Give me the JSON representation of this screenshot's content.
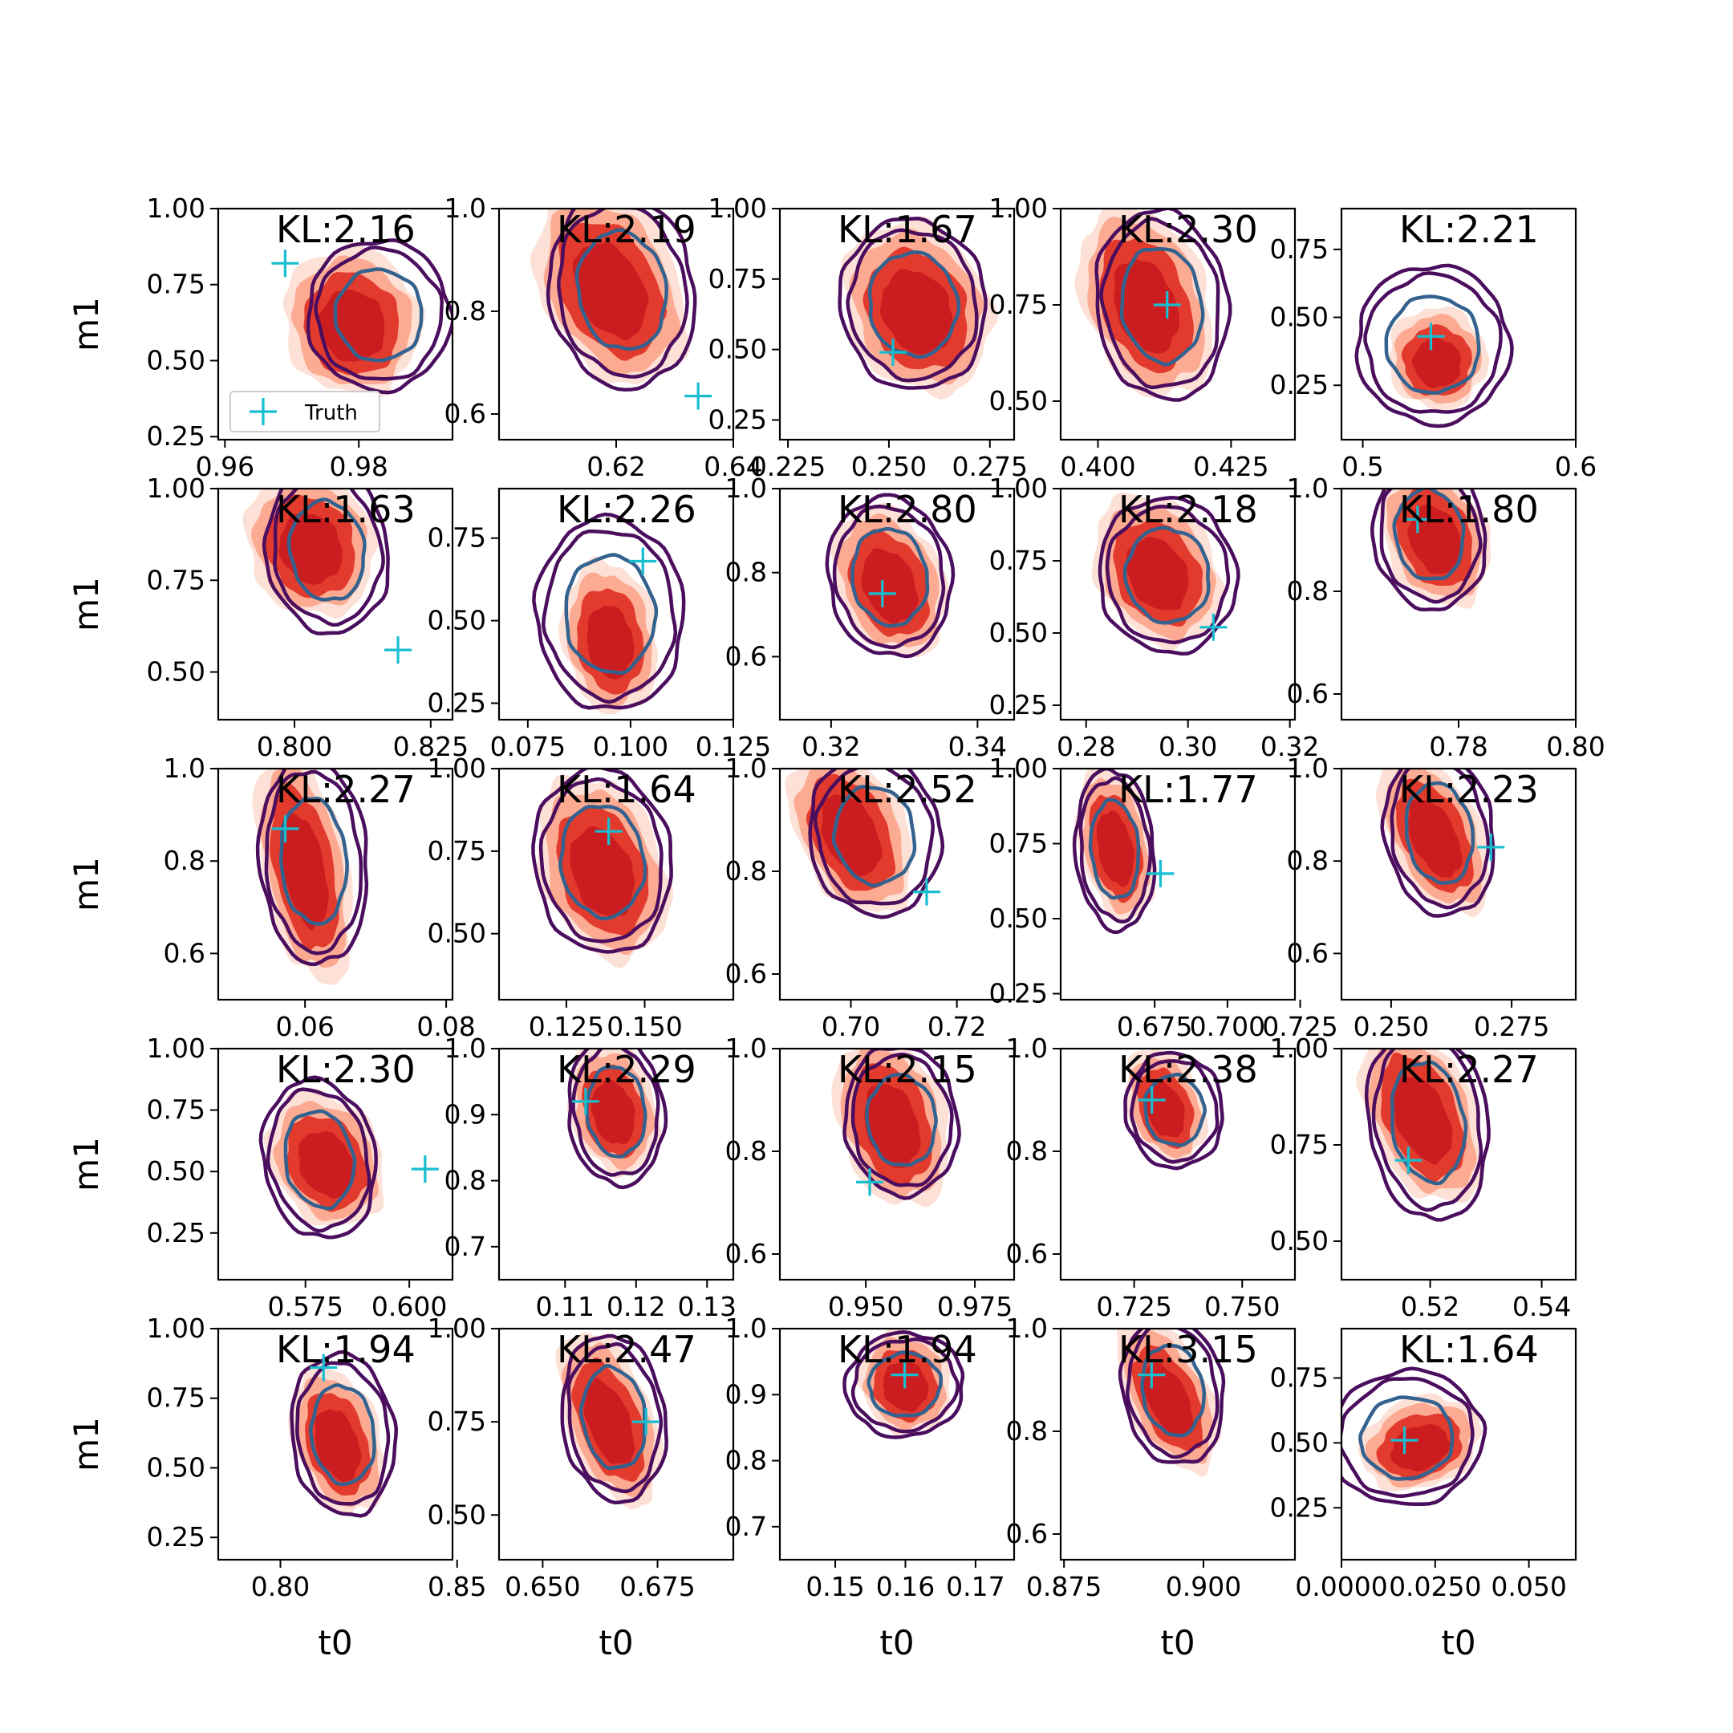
{
  "chart_data": {
    "type": "contour",
    "grid": false,
    "legend": {
      "entries": [
        "Truth"
      ],
      "placement": "bottom-left of top-left panel"
    },
    "xlabel": "t0",
    "ylabel": "m1",
    "colors": {
      "filled_light": "#fde0d6",
      "filled_mid": "#fcab92",
      "filled_dark": "#e23b2e",
      "filled_core": "#cb1d1f",
      "contour_outer": "#4b0d5e",
      "contour_inner": "#34628f",
      "truth_marker": "#17becf"
    },
    "panels": [
      {
        "kl": "KL:2.16",
        "xticks": [
          "0.96",
          "0.98"
        ],
        "yticks": [
          "0.25",
          "0.50",
          "0.75",
          "1.00"
        ],
        "xlim": [
          0.959,
          0.994
        ],
        "ylim": [
          0.24,
          1.0
        ],
        "truth": [
          0.969,
          0.82
        ],
        "post_center": [
          0.979,
          0.63
        ],
        "post_rx": 0.007,
        "post_ry": 0.17,
        "post_tilt": -0.35,
        "ref_center": [
          0.983,
          0.65
        ],
        "ref_rx": 0.0095,
        "ref_ry": 0.22
      },
      {
        "kl": "KL:2.19",
        "xticks": [
          "0.62",
          "0.64"
        ],
        "yticks": [
          "0.6",
          "0.8",
          "1.0"
        ],
        "xlim": [
          0.6,
          0.64
        ],
        "ylim": [
          0.55,
          1.0
        ],
        "truth": [
          0.634,
          0.635
        ],
        "post_center": [
          0.619,
          0.85
        ],
        "post_rx": 0.008,
        "post_ry": 0.14,
        "post_tilt": -0.45,
        "ref_center": [
          0.621,
          0.84
        ],
        "ref_rx": 0.011,
        "ref_ry": 0.17
      },
      {
        "kl": "KL:1.67",
        "xticks": [
          "0.225",
          "0.250",
          "0.275"
        ],
        "yticks": [
          "0.25",
          "0.50",
          "0.75",
          "1.00"
        ],
        "xlim": [
          0.223,
          0.281
        ],
        "ylim": [
          0.18,
          1.0
        ],
        "truth": [
          0.251,
          0.49
        ],
        "post_center": [
          0.257,
          0.65
        ],
        "post_rx": 0.012,
        "post_ry": 0.22,
        "post_tilt": -0.45,
        "ref_center": [
          0.256,
          0.66
        ],
        "ref_rx": 0.016,
        "ref_ry": 0.27
      },
      {
        "kl": "KL:2.30",
        "xticks": [
          "0.400",
          "0.425"
        ],
        "yticks": [
          "0.50",
          "0.75",
          "1.00"
        ],
        "xlim": [
          0.393,
          0.437
        ],
        "ylim": [
          0.4,
          1.0
        ],
        "truth": [
          0.413,
          0.75
        ],
        "post_center": [
          0.409,
          0.76
        ],
        "post_rx": 0.008,
        "post_ry": 0.18,
        "post_tilt": -0.35,
        "ref_center": [
          0.412,
          0.75
        ],
        "ref_rx": 0.011,
        "ref_ry": 0.22
      },
      {
        "kl": "KL:2.21",
        "xticks": [
          "0.5",
          "0.6"
        ],
        "yticks": [
          "0.25",
          "0.50",
          "0.75"
        ],
        "xlim": [
          0.49,
          0.6
        ],
        "ylim": [
          0.05,
          0.9
        ],
        "truth": [
          0.532,
          0.43
        ],
        "post_center": [
          0.535,
          0.35
        ],
        "post_rx": 0.016,
        "post_ry": 0.13,
        "post_tilt": -0.4,
        "ref_center": [
          0.533,
          0.4
        ],
        "ref_rx": 0.032,
        "ref_ry": 0.26
      }
    ],
    "panels_row2": [
      {
        "kl": "KL:1.63",
        "xticks": [
          "0.800",
          "0.825"
        ],
        "yticks": [
          "0.50",
          "0.75",
          "1.00"
        ],
        "xlim": [
          0.786,
          0.829
        ],
        "ylim": [
          0.37,
          1.0
        ],
        "truth": [
          0.819,
          0.56
        ],
        "post_center": [
          0.803,
          0.85
        ],
        "post_rx": 0.008,
        "post_ry": 0.14,
        "post_tilt": -0.4,
        "ref_center": [
          0.806,
          0.83
        ],
        "ref_rx": 0.01,
        "ref_ry": 0.2
      },
      {
        "kl": "KL:2.26",
        "xticks": [
          "0.075",
          "0.100",
          "0.125"
        ],
        "yticks": [
          "0.25",
          "0.50",
          "0.75"
        ],
        "xlim": [
          0.068,
          0.125
        ],
        "ylim": [
          0.2,
          0.9
        ],
        "truth": [
          0.103,
          0.68
        ],
        "post_center": [
          0.095,
          0.45
        ],
        "post_rx": 0.008,
        "post_ry": 0.16,
        "post_tilt": -0.15,
        "ref_center": [
          0.095,
          0.52
        ],
        "ref_rx": 0.016,
        "ref_ry": 0.26
      },
      {
        "kl": "KL:2.80",
        "xticks": [
          "0.32",
          "0.34"
        ],
        "yticks": [
          "0.6",
          "0.8",
          "1.0"
        ],
        "xlim": [
          0.313,
          0.345
        ],
        "ylim": [
          0.45,
          1.0
        ],
        "truth": [
          0.327,
          0.75
        ],
        "post_center": [
          0.328,
          0.78
        ],
        "post_rx": 0.005,
        "post_ry": 0.13,
        "post_tilt": -0.4,
        "ref_center": [
          0.328,
          0.79
        ],
        "ref_rx": 0.0075,
        "ref_ry": 0.17
      },
      {
        "kl": "KL:2.18",
        "xticks": [
          "0.28",
          "0.30",
          "0.32"
        ],
        "yticks": [
          "0.25",
          "0.50",
          "0.75",
          "1.00"
        ],
        "xlim": [
          0.275,
          0.321
        ],
        "ylim": [
          0.2,
          1.0
        ],
        "truth": [
          0.305,
          0.52
        ],
        "post_center": [
          0.294,
          0.72
        ],
        "post_rx": 0.008,
        "post_ry": 0.19,
        "post_tilt": -0.5,
        "ref_center": [
          0.296,
          0.7
        ],
        "ref_rx": 0.012,
        "ref_ry": 0.24
      },
      {
        "kl": "KL:1.80",
        "xticks": [
          "0.78",
          "0.80"
        ],
        "yticks": [
          "0.6",
          "0.8",
          "1.0"
        ],
        "xlim": [
          0.76,
          0.8
        ],
        "ylim": [
          0.55,
          1.0
        ],
        "truth": [
          0.773,
          0.94
        ],
        "post_center": [
          0.776,
          0.91
        ],
        "post_rx": 0.006,
        "post_ry": 0.1,
        "post_tilt": -0.4,
        "ref_center": [
          0.775,
          0.91
        ],
        "ref_rx": 0.0085,
        "ref_ry": 0.13
      }
    ],
    "panels_row3": [
      {
        "kl": "KL:2.27",
        "xticks": [
          "0.06",
          "0.08"
        ],
        "yticks": [
          "0.6",
          "0.8",
          "1.0"
        ],
        "xlim": [
          0.0477,
          0.0809
        ],
        "ylim": [
          0.5,
          1.0
        ],
        "truth": [
          0.0572,
          0.87
        ],
        "post_center": [
          0.0599,
          0.79
        ],
        "post_rx": 0.0042,
        "post_ry": 0.18,
        "post_tilt": -0.2,
        "ref_center": [
          0.0612,
          0.8
        ],
        "ref_rx": 0.0068,
        "ref_ry": 0.2
      },
      {
        "kl": "KL:1.64",
        "xticks": [
          "0.125",
          "0.150"
        ],
        "yticks": [
          "0.50",
          "0.75",
          "1.00"
        ],
        "xlim": [
          0.1035,
          0.1783
        ],
        "ylim": [
          0.3,
          1.0
        ],
        "truth": [
          0.1385,
          0.81
        ],
        "post_center": [
          0.1365,
          0.7
        ],
        "post_rx": 0.0135,
        "post_ry": 0.2,
        "post_tilt": -0.35,
        "ref_center": [
          0.1365,
          0.72
        ],
        "ref_rx": 0.0195,
        "ref_ry": 0.25
      },
      {
        "kl": "KL:2.52",
        "xticks": [
          "0.70",
          "0.72"
        ],
        "yticks": [
          "0.6",
          "0.8",
          "1.0"
        ],
        "xlim": [
          0.6866,
          0.7308
        ],
        "ylim": [
          0.55,
          1.0
        ],
        "truth": [
          0.7143,
          0.76
        ],
        "post_center": [
          0.7,
          0.88
        ],
        "post_rx": 0.007,
        "post_ry": 0.12,
        "post_tilt": -0.45,
        "ref_center": [
          0.7045,
          0.87
        ],
        "ref_rx": 0.011,
        "ref_ry": 0.14
      },
      {
        "kl": "KL:1.77",
        "xticks": [
          "0.675",
          "0.700",
          "0.725"
        ],
        "yticks": [
          "0.25",
          "0.50",
          "0.75",
          "1.00"
        ],
        "xlim": [
          0.6427,
          0.7232
        ],
        "ylim": [
          0.23,
          1.0
        ],
        "truth": [
          0.677,
          0.65
        ],
        "post_center": [
          0.6615,
          0.75
        ],
        "post_rx": 0.0085,
        "post_ry": 0.18,
        "post_tilt": -0.2,
        "ref_center": [
          0.6613,
          0.73
        ],
        "ref_rx": 0.012,
        "ref_ry": 0.24
      },
      {
        "kl": "KL:2.23",
        "xticks": [
          "0.250",
          "0.275"
        ],
        "yticks": [
          "0.6",
          "0.8",
          "1.0"
        ],
        "xlim": [
          0.2397,
          0.2883
        ],
        "ylim": [
          0.5,
          1.0
        ],
        "truth": [
          0.2707,
          0.83
        ],
        "post_center": [
          0.259,
          0.86
        ],
        "post_rx": 0.0065,
        "post_ry": 0.13,
        "post_tilt": -0.45,
        "ref_center": [
          0.26,
          0.86
        ],
        "ref_rx": 0.01,
        "ref_ry": 0.16
      }
    ],
    "panels_row4": [
      {
        "kl": "KL:2.30",
        "xticks": [
          "0.575",
          "0.600"
        ],
        "yticks": [
          "0.25",
          "0.50",
          "0.75",
          "1.00"
        ],
        "xlim": [
          0.554,
          0.6104
        ],
        "ylim": [
          0.06,
          1.0
        ],
        "truth": [
          0.6038,
          0.51
        ],
        "post_center": [
          0.58,
          0.55
        ],
        "post_rx": 0.009,
        "post_ry": 0.2,
        "post_tilt": -0.5,
        "ref_center": [
          0.5783,
          0.55
        ],
        "ref_rx": 0.012,
        "ref_ry": 0.29
      },
      {
        "kl": "KL:2.29",
        "xticks": [
          "0.11",
          "0.12",
          "0.13"
        ],
        "yticks": [
          "0.7",
          "0.8",
          "0.9",
          "1.0"
        ],
        "xlim": [
          0.1007,
          0.1337
        ],
        "ylim": [
          0.65,
          1.0
        ],
        "truth": [
          0.1129,
          0.92
        ],
        "post_center": [
          0.1168,
          0.91
        ],
        "post_rx": 0.0042,
        "post_ry": 0.07,
        "post_tilt": -0.25,
        "ref_center": [
          0.1172,
          0.905
        ],
        "ref_rx": 0.006,
        "ref_ry": 0.1
      },
      {
        "kl": "KL:2.15",
        "xticks": [
          "0.950",
          "0.975"
        ],
        "yticks": [
          "0.6",
          "0.8",
          "1.0"
        ],
        "xlim": [
          0.9303,
          0.984
        ],
        "ylim": [
          0.55,
          1.0
        ],
        "truth": [
          0.9509,
          0.74
        ],
        "post_center": [
          0.956,
          0.86
        ],
        "post_rx": 0.0085,
        "post_ry": 0.12,
        "post_tilt": -0.3,
        "ref_center": [
          0.9582,
          0.86
        ],
        "ref_rx": 0.0115,
        "ref_ry": 0.13
      },
      {
        "kl": "KL:2.38",
        "xticks": [
          "0.725",
          "0.750"
        ],
        "yticks": [
          "0.6",
          "0.8",
          "1.0"
        ],
        "xlim": [
          0.708,
          0.7622
        ],
        "ylim": [
          0.55,
          1.0
        ],
        "truth": [
          0.7291,
          0.9
        ],
        "post_center": [
          0.7322,
          0.89
        ],
        "post_rx": 0.006,
        "post_ry": 0.08,
        "post_tilt": -0.35,
        "ref_center": [
          0.7343,
          0.88
        ],
        "ref_rx": 0.01,
        "ref_ry": 0.1
      },
      {
        "kl": "KL:2.27",
        "xticks": [
          "0.52",
          "0.54"
        ],
        "yticks": [
          "0.50",
          "0.75",
          "1.00"
        ],
        "xlim": [
          0.5041,
          0.5461
        ],
        "ylim": [
          0.4,
          1.0
        ],
        "truth": [
          0.5161,
          0.71
        ],
        "post_center": [
          0.5186,
          0.83
        ],
        "post_rx": 0.0065,
        "post_ry": 0.17,
        "post_tilt": -0.4,
        "ref_center": [
          0.5196,
          0.81
        ],
        "ref_rx": 0.0095,
        "ref_ry": 0.23
      }
    ],
    "panels_row5": [
      {
        "kl": "KL:1.94",
        "xticks": [
          "0.80",
          "0.85"
        ],
        "yticks": [
          "0.25",
          "0.50",
          "0.75",
          "1.00"
        ],
        "xlim": [
          0.7824,
          0.8487
        ],
        "ylim": [
          0.17,
          1.0
        ],
        "truth": [
          0.8122,
          0.86
        ],
        "post_center": [
          0.8161,
          0.6
        ],
        "post_rx": 0.0085,
        "post_ry": 0.19,
        "post_tilt": -0.3,
        "ref_center": [
          0.8177,
          0.62
        ],
        "ref_rx": 0.013,
        "ref_ry": 0.26
      },
      {
        "kl": "KL:2.47",
        "xticks": [
          "0.650",
          "0.675"
        ],
        "yticks": [
          "0.50",
          "0.75",
          "1.00"
        ],
        "xlim": [
          0.6405,
          0.6915
        ],
        "ylim": [
          0.38,
          1.0
        ],
        "truth": [
          0.6725,
          0.75
        ],
        "post_center": [
          0.6645,
          0.76
        ],
        "post_rx": 0.0065,
        "post_ry": 0.17,
        "post_tilt": -0.35,
        "ref_center": [
          0.6655,
          0.76
        ],
        "ref_rx": 0.01,
        "ref_ry": 0.2
      },
      {
        "kl": "KL:1.94",
        "xticks": [
          "0.15",
          "0.16",
          "0.17"
        ],
        "yticks": [
          "0.7",
          "0.8",
          "0.9",
          "1.0"
        ],
        "xlim": [
          0.1421,
          0.1755
        ],
        "ylim": [
          0.65,
          1.0
        ],
        "truth": [
          0.1599,
          0.93
        ],
        "post_center": [
          0.16,
          0.92
        ],
        "post_rx": 0.0045,
        "post_ry": 0.055,
        "post_tilt": -0.35,
        "ref_center": [
          0.1599,
          0.915
        ],
        "ref_rx": 0.0075,
        "ref_ry": 0.07
      },
      {
        "kl": "KL:3.15",
        "xticks": [
          "0.875",
          "0.900"
        ],
        "yticks": [
          "0.6",
          "0.8",
          "1.0"
        ],
        "xlim": [
          0.8744,
          0.9164
        ],
        "ylim": [
          0.55,
          1.0
        ],
        "truth": [
          0.8907,
          0.91
        ],
        "post_center": [
          0.8937,
          0.87
        ],
        "post_rx": 0.005,
        "post_ry": 0.11,
        "post_tilt": -0.45,
        "ref_center": [
          0.8945,
          0.88
        ],
        "ref_rx": 0.008,
        "ref_ry": 0.13
      },
      {
        "kl": "KL:1.64",
        "xticks": [
          "0.0000",
          "0.0250",
          "0.050"
        ],
        "yticks": [
          "0.25",
          "0.50",
          "0.75"
        ],
        "xlim": [
          0.0,
          0.0625
        ],
        "ylim": [
          0.05,
          0.94
        ],
        "truth": [
          0.0168,
          0.51
        ],
        "post_center": [
          0.021,
          0.5
        ],
        "post_rx": 0.0115,
        "post_ry": 0.12,
        "post_tilt": -0.35,
        "ref_center": [
          0.0175,
          0.52
        ],
        "ref_rx": 0.018,
        "ref_ry": 0.23
      }
    ]
  }
}
